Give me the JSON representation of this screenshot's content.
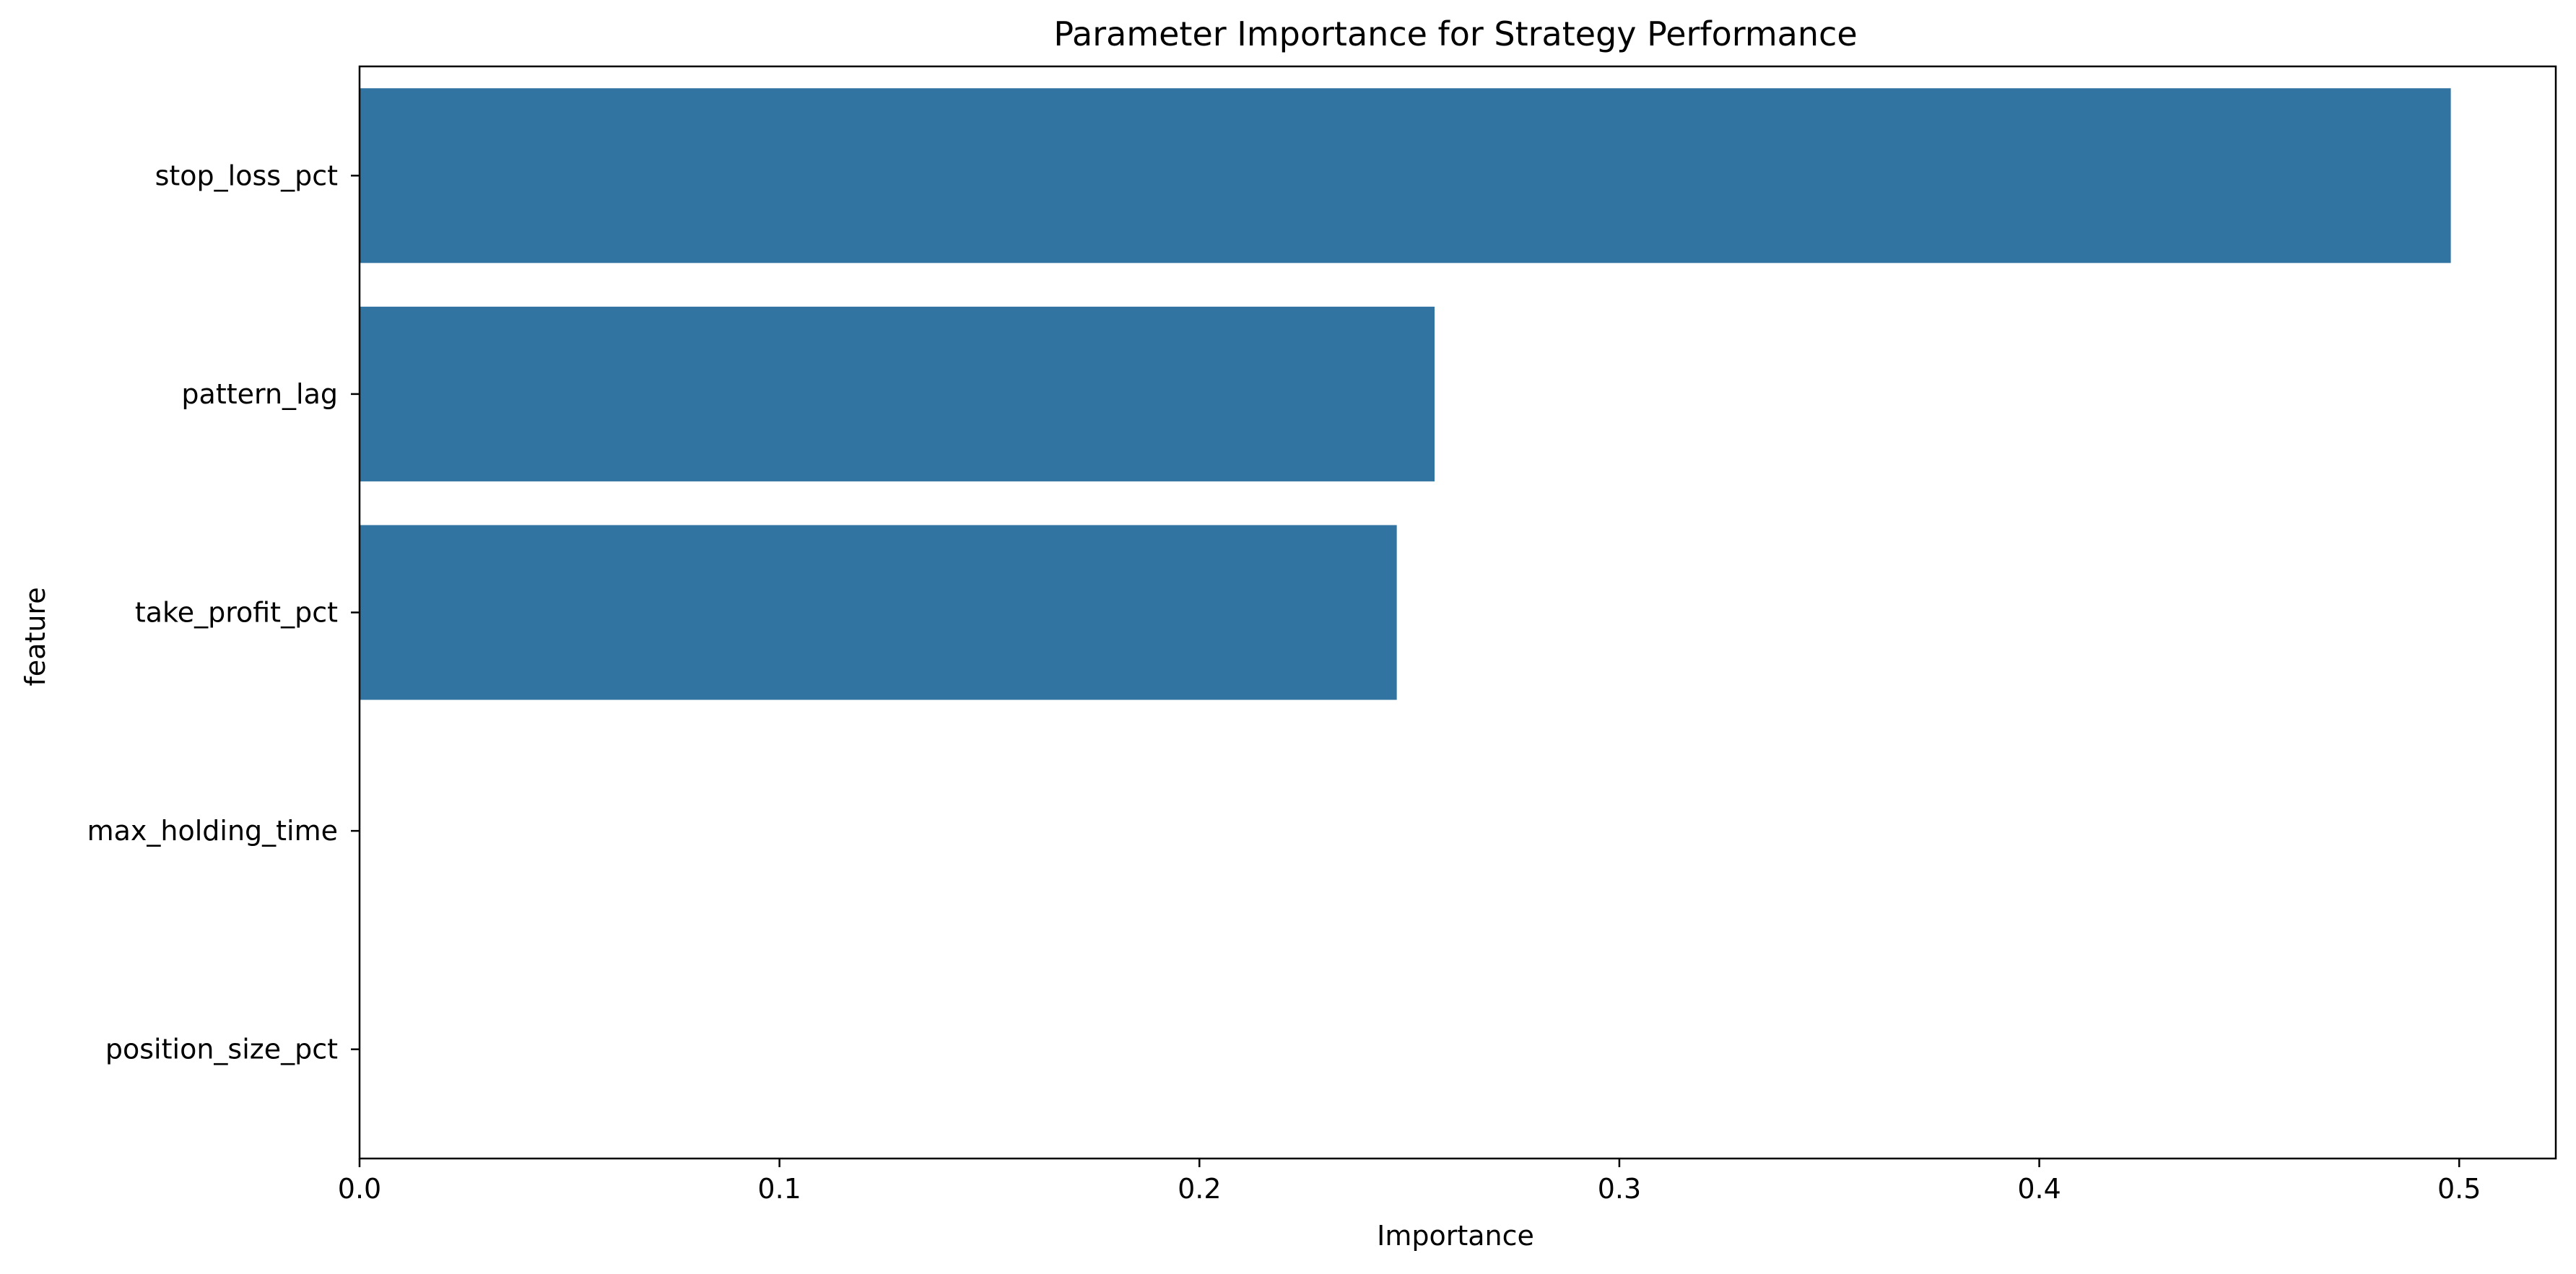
{
  "chart_data": {
    "type": "bar",
    "orientation": "horizontal",
    "title": "Parameter Importance for Strategy Performance",
    "xlabel": "Importance",
    "ylabel": "feature",
    "categories": [
      "stop_loss_pct",
      "pattern_lag",
      "take_profit_pct",
      "max_holding_time",
      "position_size_pct"
    ],
    "values": [
      0.498,
      0.256,
      0.247,
      0.0,
      0.0
    ],
    "xlim": [
      0,
      0.523
    ],
    "xticks": [
      0.0,
      0.1,
      0.2,
      0.3,
      0.4,
      0.5
    ],
    "xtick_labels": [
      "0.0",
      "0.1",
      "0.2",
      "0.3",
      "0.4",
      "0.5"
    ],
    "grid": false,
    "bar_color": "#3274a1"
  }
}
